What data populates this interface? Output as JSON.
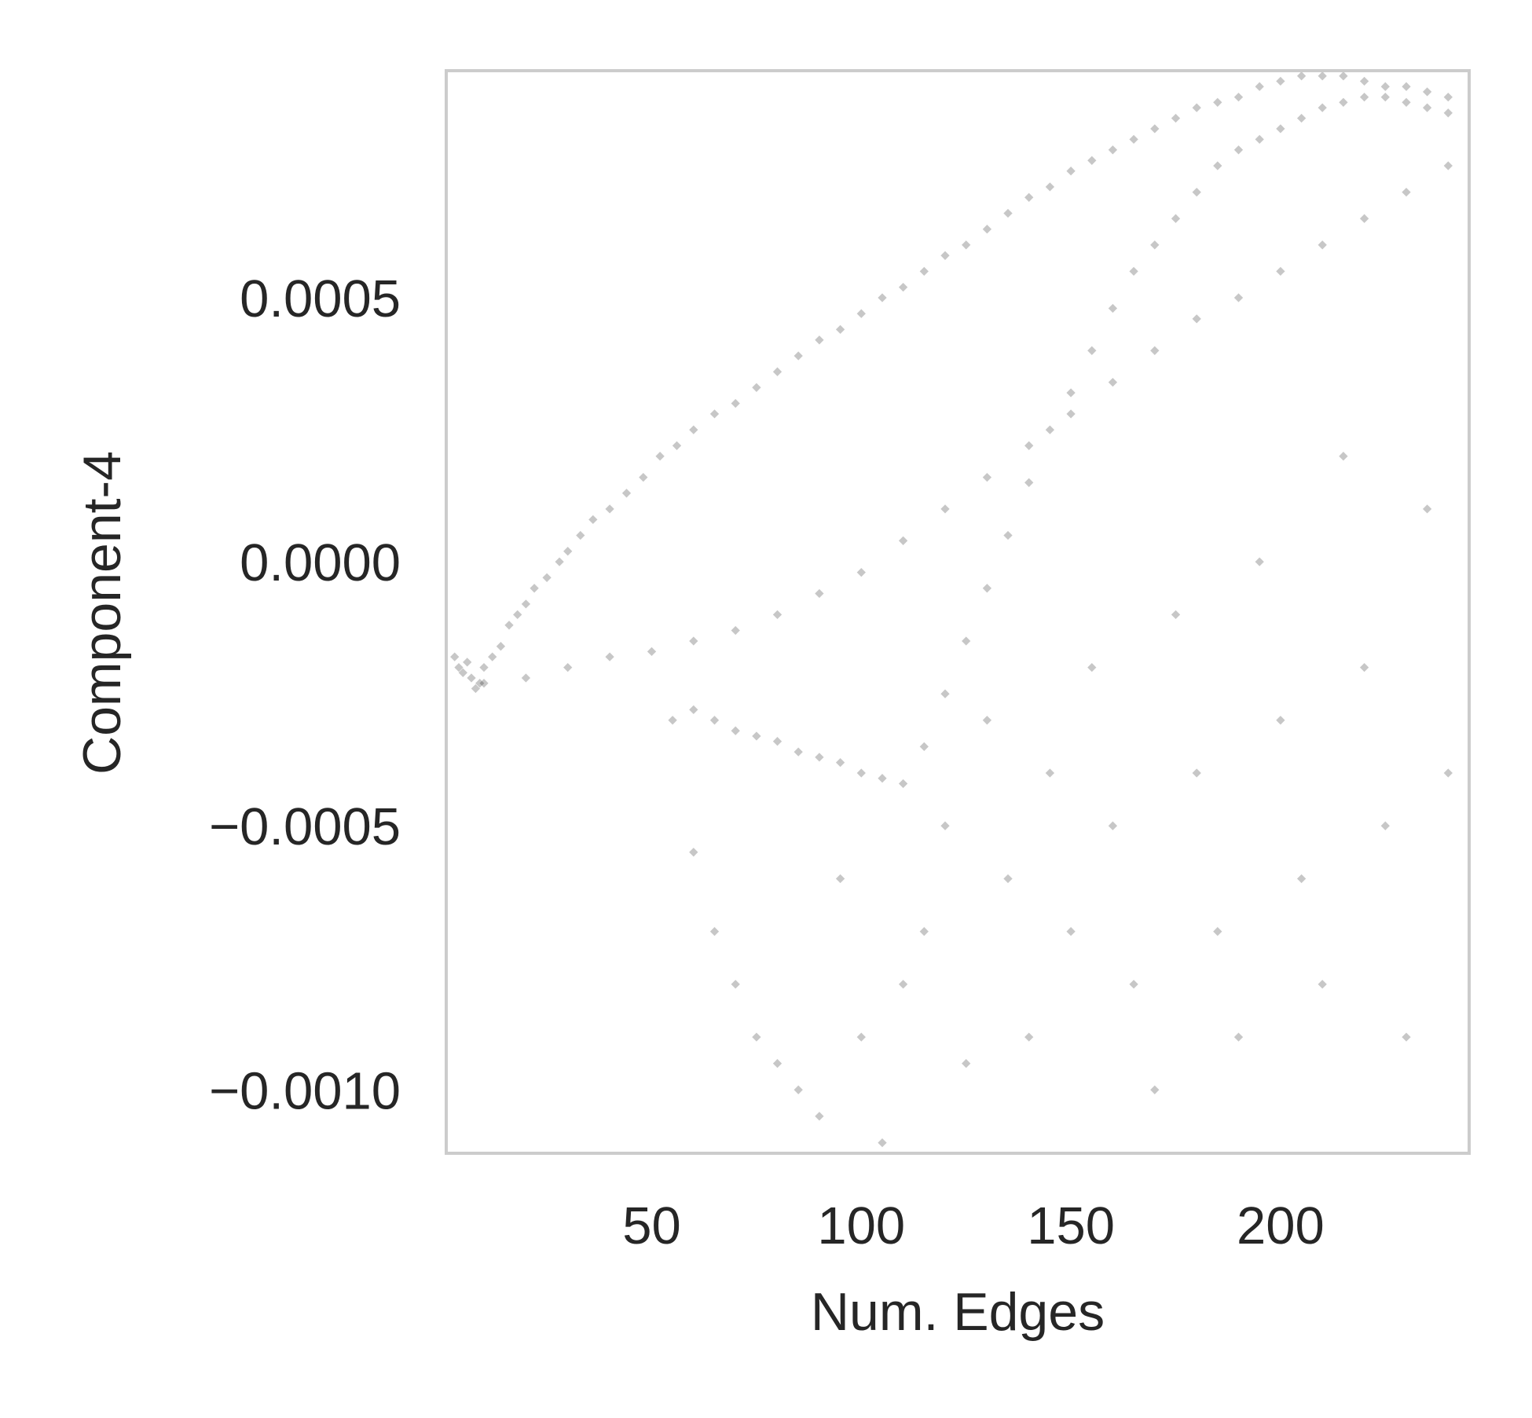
{
  "chart_data": {
    "type": "scatter",
    "title": "",
    "xlabel": "Num. Edges",
    "ylabel": "Component-4",
    "xlim": [
      1,
      245
    ],
    "ylim": [
      -0.00112,
      0.00093
    ],
    "x_ticks": [
      50,
      100,
      150,
      200
    ],
    "x_tick_labels": [
      "50",
      "100",
      "150",
      "200"
    ],
    "y_ticks": [
      0.0005,
      0.0,
      -0.0005,
      -0.001
    ],
    "y_tick_labels": [
      "0.0005",
      "0.0000",
      "−0.0005",
      "−0.0010"
    ],
    "grid": false,
    "legend": "none",
    "marker_color": "#000000",
    "marker_opacity": 0.22,
    "frame_color": "#cccccc",
    "series": [
      {
        "x": [
          3,
          4,
          5,
          6,
          7,
          8,
          9,
          10,
          12,
          14,
          16,
          18,
          20,
          22,
          25,
          28,
          30,
          33,
          36,
          40,
          44,
          48,
          52,
          56,
          60,
          65,
          70,
          75,
          80,
          85,
          90,
          95,
          100,
          105,
          110,
          115,
          120,
          125,
          130,
          135,
          140,
          145,
          150,
          155,
          160,
          165,
          170,
          175,
          180,
          185,
          190,
          195,
          200,
          205,
          210,
          215,
          220,
          225,
          230,
          235,
          240,
          10,
          20,
          30,
          40,
          50,
          60,
          70,
          80,
          90,
          100,
          110,
          120,
          130,
          140,
          150,
          160,
          170,
          180,
          190,
          200,
          210,
          220,
          230,
          240,
          55,
          60,
          65,
          70,
          75,
          80,
          85,
          90,
          95,
          100,
          105,
          110,
          115,
          120,
          125,
          130,
          135,
          140,
          145,
          150,
          155,
          160,
          165,
          170,
          175,
          180,
          185,
          190,
          195,
          200,
          205,
          210,
          215,
          220,
          225,
          230,
          235,
          240,
          60,
          65,
          70,
          75,
          80,
          85,
          90,
          95,
          100,
          105,
          110,
          115,
          120,
          125,
          130,
          135,
          140,
          145,
          150,
          155,
          160,
          165,
          170,
          175,
          180,
          185,
          190,
          195,
          200,
          205,
          210,
          215,
          220,
          225,
          230,
          235,
          240
        ],
        "y": [
          -0.00018,
          -0.0002,
          -0.00021,
          -0.00019,
          -0.00022,
          -0.00024,
          -0.00023,
          -0.0002,
          -0.00018,
          -0.00016,
          -0.00012,
          -0.0001,
          -8e-05,
          -5e-05,
          -3e-05,
          0.0,
          2e-05,
          5e-05,
          8e-05,
          0.0001,
          0.00013,
          0.00016,
          0.0002,
          0.00022,
          0.00025,
          0.00028,
          0.0003,
          0.00033,
          0.00036,
          0.00039,
          0.00042,
          0.00044,
          0.00047,
          0.0005,
          0.00052,
          0.00055,
          0.00058,
          0.0006,
          0.00063,
          0.00066,
          0.00069,
          0.00071,
          0.00074,
          0.00076,
          0.00078,
          0.0008,
          0.00082,
          0.00084,
          0.00086,
          0.00087,
          0.00088,
          0.0009,
          0.00091,
          0.00092,
          0.00092,
          0.00092,
          0.00091,
          0.0009,
          0.0009,
          0.00089,
          0.00088,
          -0.00023,
          -0.00022,
          -0.0002,
          -0.00018,
          -0.00017,
          -0.00015,
          -0.00013,
          -0.0001,
          -6e-05,
          -2e-05,
          4e-05,
          0.0001,
          0.00016,
          0.00022,
          0.00028,
          0.00034,
          0.0004,
          0.00046,
          0.0005,
          0.00055,
          0.0006,
          0.00065,
          0.0007,
          0.00075,
          -0.0003,
          -0.00028,
          -0.0003,
          -0.00032,
          -0.00033,
          -0.00034,
          -0.00036,
          -0.00037,
          -0.00038,
          -0.0004,
          -0.00041,
          -0.00042,
          -0.00035,
          -0.00025,
          -0.00015,
          -5e-05,
          5e-05,
          0.00015,
          0.00025,
          0.00032,
          0.0004,
          0.00048,
          0.00055,
          0.0006,
          0.00065,
          0.0007,
          0.00075,
          0.00078,
          0.0008,
          0.00082,
          0.00084,
          0.00086,
          0.00087,
          0.00088,
          0.00088,
          0.00087,
          0.00086,
          0.00085,
          -0.00055,
          -0.0007,
          -0.0008,
          -0.0009,
          -0.00095,
          -0.001,
          -0.00105,
          -0.0006,
          -0.0009,
          -0.0011,
          -0.0008,
          -0.0007,
          -0.0005,
          -0.00095,
          -0.0003,
          -0.0006,
          -0.0009,
          -0.0004,
          -0.0007,
          -0.0002,
          -0.0005,
          -0.0008,
          -0.001,
          -0.0001,
          -0.0004,
          -0.0007,
          -0.0009,
          0.0,
          -0.0003,
          -0.0006,
          -0.0008,
          0.0002,
          -0.0002,
          -0.0005,
          -0.0009,
          0.0001,
          -0.0004
        ]
      }
    ]
  }
}
